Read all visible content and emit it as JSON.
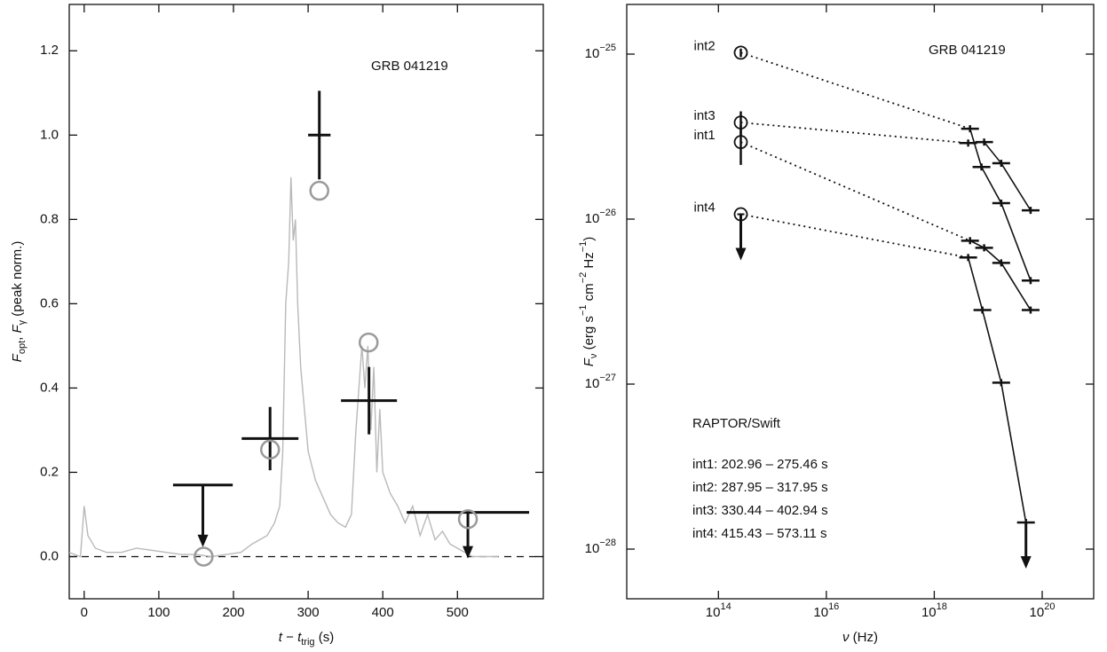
{
  "chart_data": [
    {
      "type": "line",
      "annotation": "GRB 041219",
      "xlabel": [
        "t",
        " − ",
        "t",
        "trig",
        " (s)"
      ],
      "ylabel": [
        "F",
        "opt",
        ", ",
        "F",
        "γ",
        "  (peak norm.)"
      ],
      "xlim": [
        -20,
        615
      ],
      "ylim": [
        -0.1,
        1.31
      ],
      "xticks": [
        0,
        100,
        200,
        300,
        400,
        500
      ],
      "yticks": [
        {
          "value": 0,
          "label": "0.0"
        },
        {
          "value": 0.2,
          "label": "0.2"
        },
        {
          "value": 0.4,
          "label": "0.4"
        },
        {
          "value": 0.6,
          "label": "0.6"
        },
        {
          "value": 0.8,
          "label": "0.8"
        },
        {
          "value": 1,
          "label": "1.0"
        },
        {
          "value": 1.2,
          "label": "1.2"
        }
      ],
      "series": [
        {
          "color": "#b9b9b9",
          "x": [
            -20,
            -5,
            0,
            5,
            15,
            30,
            50,
            70,
            90,
            110,
            130,
            150,
            170,
            190,
            210,
            225,
            235,
            245,
            255,
            262,
            266,
            270,
            274,
            277,
            280,
            283,
            286,
            290,
            295,
            300,
            310,
            320,
            330,
            340,
            350,
            358,
            364,
            368,
            372,
            376,
            380,
            384,
            388,
            392,
            396,
            400,
            410,
            420,
            430,
            440,
            450,
            460,
            470,
            480,
            490,
            500,
            510,
            520,
            540,
            555
          ],
          "values": [
            0.01,
            0.0,
            0.12,
            0.05,
            0.02,
            0.01,
            0.01,
            0.02,
            0.015,
            0.01,
            0.005,
            0.005,
            0.0,
            0.005,
            0.01,
            0.03,
            0.04,
            0.05,
            0.08,
            0.12,
            0.25,
            0.6,
            0.7,
            0.9,
            0.75,
            0.8,
            0.6,
            0.45,
            0.35,
            0.25,
            0.18,
            0.14,
            0.1,
            0.08,
            0.07,
            0.1,
            0.3,
            0.4,
            0.5,
            0.4,
            0.5,
            0.3,
            0.45,
            0.2,
            0.35,
            0.2,
            0.15,
            0.12,
            0.08,
            0.12,
            0.05,
            0.1,
            0.04,
            0.06,
            0.03,
            0.02,
            0.01,
            0.0,
            0.0,
            0.0
          ]
        }
      ],
      "optical": {
        "color": "#111111",
        "x_lo": [
          119,
          211,
          300,
          344,
          432
        ],
        "x_hi": [
          199,
          287,
          330,
          419,
          596
        ],
        "values": [
          0.17,
          0.28,
          1.0,
          0.37,
          0.105
        ],
        "errors": [
          null,
          0.075,
          0.105,
          0.08,
          null
        ],
        "upper_limits": [
          true,
          false,
          false,
          false,
          true
        ]
      },
      "gamma": {
        "color": "#9a9a9a",
        "x": [
          160,
          249,
          315,
          381,
          514
        ],
        "values": [
          0.0,
          0.254,
          0.868,
          0.508,
          0.089
        ]
      }
    },
    {
      "type": "line",
      "xscale": "log",
      "yscale": "log",
      "annotation": "GRB 041219",
      "notes": [
        "RAPTOR/Swift",
        "int1: 202.96 – 275.46 s",
        "int2: 287.95 – 317.95 s",
        "int3: 330.44 – 402.94 s",
        "int4: 415.43 – 573.11 s"
      ],
      "xlabel": [
        "ν",
        " (Hz)"
      ],
      "ylabel": [
        "F",
        "ν",
        " (erg s",
        "−1",
        " cm",
        "−2",
        " Hz",
        "−1",
        ")"
      ],
      "xlim": [
        2000000000000.0,
        9e+20
      ],
      "ylim": [
        5e-29,
        2e-25
      ],
      "xticks": [
        {
          "value": 100000000000000.0,
          "label": "1014"
        },
        {
          "value": 1e+16,
          "label": "1016"
        },
        {
          "value": 1e+18,
          "label": "1018"
        },
        {
          "value": 1e+20,
          "label": "1020"
        }
      ],
      "yticks": [
        {
          "value": 1e-25,
          "label": "10−25"
        },
        {
          "value": 1e-26,
          "label": "10−26"
        },
        {
          "value": 1e-27,
          "label": "10−27"
        },
        {
          "value": 1e-28,
          "label": "10−28"
        }
      ],
      "series": [
        {
          "name": "int2",
          "color": "#111111",
          "x": [
            260000000000000.0,
            4.6e+18,
            7.5e+18,
            1.74e+19,
            6.1e+19
          ],
          "values": [
            1.02e-25,
            3.53e-26,
            2.07e-26,
            1.25e-26,
            4.24e-27
          ],
          "errors": [
            6e-27,
            null,
            null,
            null,
            null
          ],
          "upper_limits": [
            false,
            false,
            false,
            false,
            false
          ]
        },
        {
          "name": "int3",
          "color": "#111111",
          "x": [
            260000000000000.0,
            4.25e+18,
            8.4e+18,
            1.74e+19,
            6.1e+19
          ],
          "values": [
            3.85e-26,
            2.89e-26,
            2.93e-26,
            2.18e-26,
            1.13e-26
          ],
          "errors": [
            6.5e-27,
            null,
            null,
            null,
            null
          ],
          "upper_limits": [
            false,
            false,
            false,
            false,
            false
          ]
        },
        {
          "name": "int1",
          "color": "#111111",
          "x": [
            260000000000000.0,
            4.6e+18,
            8.4e+18,
            1.74e+19,
            6.1e+19
          ],
          "values": [
            2.93e-26,
            7.4e-27,
            6.7e-27,
            5.43e-27,
            2.81e-27
          ],
          "errors": [
            8e-27,
            null,
            null,
            null,
            null
          ],
          "upper_limits": [
            false,
            false,
            false,
            false,
            false
          ]
        },
        {
          "name": "int4",
          "color": "#111111",
          "x": [
            260000000000000.0,
            4.25e+18,
            7.8e+18,
            1.74e+19,
            5e+19
          ],
          "values": [
            1.07e-26,
            5.85e-27,
            2.81e-27,
            1.02e-27,
            1.45e-28
          ],
          "errors": [
            null,
            null,
            null,
            null,
            null
          ],
          "upper_limits": [
            true,
            false,
            false,
            false,
            true
          ]
        }
      ]
    }
  ]
}
